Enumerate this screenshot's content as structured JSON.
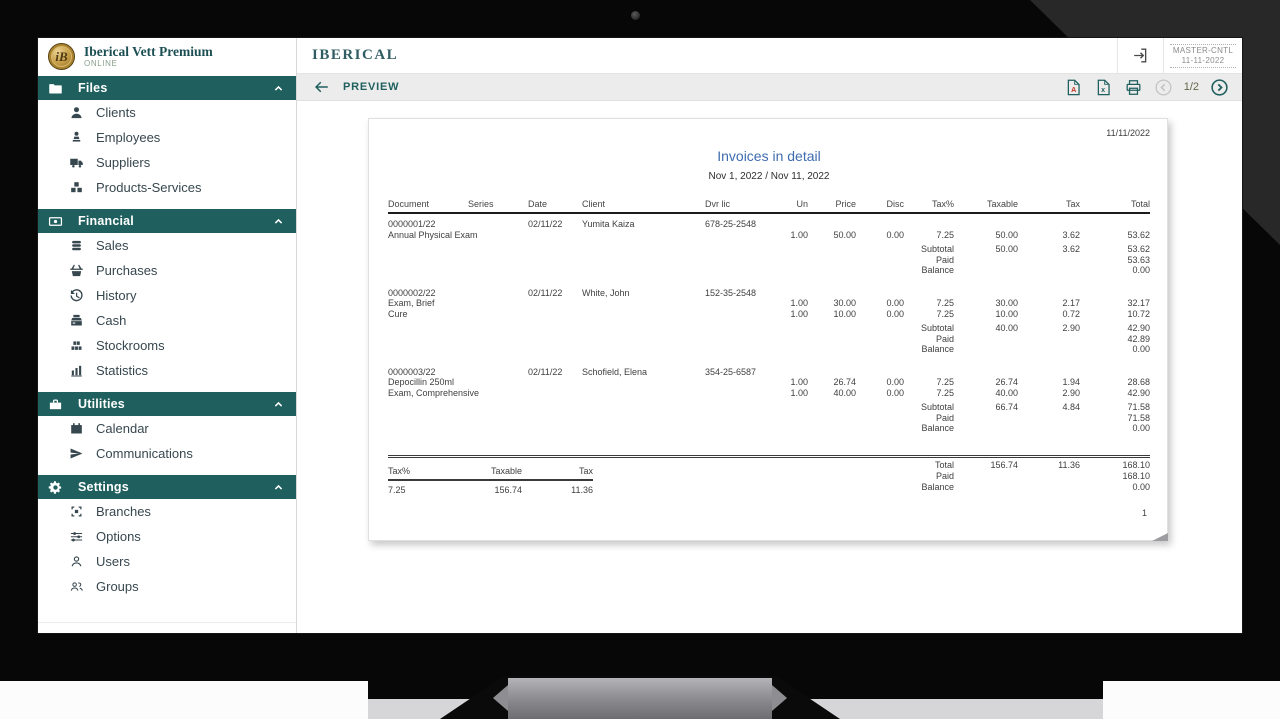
{
  "brand": {
    "title": "Iberical Vett Premium",
    "subtitle": "ONLINE",
    "monogram": "iB"
  },
  "header": {
    "app_title": "IBERICAL",
    "master_label": "MASTER-CNTL",
    "master_date": "11-11-2022"
  },
  "toolbar": {
    "preview_label": "PREVIEW",
    "page_indicator": "1/2"
  },
  "colors": {
    "accent": "#1f5f5e",
    "title_blue": "#3e6cb0",
    "coin_gold": "#c49b44"
  },
  "sidebar": {
    "sections": [
      {
        "label": "Files",
        "icon": "folder",
        "items": [
          {
            "label": "Clients",
            "icon": "person"
          },
          {
            "label": "Employees",
            "icon": "employee"
          },
          {
            "label": "Suppliers",
            "icon": "truck"
          },
          {
            "label": "Products-Services",
            "icon": "boxes"
          }
        ]
      },
      {
        "label": "Financial",
        "icon": "money",
        "items": [
          {
            "label": "Sales",
            "icon": "coins"
          },
          {
            "label": "Purchases",
            "icon": "basket"
          },
          {
            "label": "History",
            "icon": "history"
          },
          {
            "label": "Cash",
            "icon": "register"
          },
          {
            "label": "Stockrooms",
            "icon": "pallet"
          },
          {
            "label": "Statistics",
            "icon": "chart"
          }
        ]
      },
      {
        "label": "Utilities",
        "icon": "toolbox",
        "items": [
          {
            "label": "Calendar",
            "icon": "calendar"
          },
          {
            "label": "Communications",
            "icon": "send"
          }
        ]
      },
      {
        "label": "Settings",
        "icon": "gear",
        "items": [
          {
            "label": "Branches",
            "icon": "focus"
          },
          {
            "label": "Options",
            "icon": "sliders"
          },
          {
            "label": "Users",
            "icon": "user"
          },
          {
            "label": "Groups",
            "icon": "users"
          }
        ]
      }
    ]
  },
  "report": {
    "date": "11/11/2022",
    "title": "Invoices in detail",
    "subtitle": "Nov 1, 2022 / Nov 11, 2022",
    "columns": [
      "Document",
      "Series",
      "Date",
      "Client",
      "Dvr lic",
      "Un",
      "Price",
      "Disc",
      "Tax%",
      "Taxable",
      "Tax",
      "Total"
    ],
    "labels": {
      "subtotal": "Subtotal",
      "paid": "Paid",
      "balance": "Balance",
      "total": "Total"
    },
    "invoices": [
      {
        "document": "0000001/22",
        "series": "",
        "date": "02/11/22",
        "client": "Yumita Kaiza",
        "dvr_lic": "678-25-2548",
        "lines": [
          {
            "description": "Annual Physical Exam",
            "un": "1.00",
            "price": "50.00",
            "disc": "0.00",
            "tax_pct": "7.25",
            "taxable": "50.00",
            "tax": "3.62",
            "total": "53.62"
          }
        ],
        "subtotal": {
          "taxable": "50.00",
          "tax": "3.62",
          "total": "53.62"
        },
        "paid": "53.63",
        "balance": "0.00"
      },
      {
        "document": "0000002/22",
        "series": "",
        "date": "02/11/22",
        "client": "White, John",
        "dvr_lic": "152-35-2548",
        "lines": [
          {
            "description": "Exam, Brief",
            "un": "1.00",
            "price": "30.00",
            "disc": "0.00",
            "tax_pct": "7.25",
            "taxable": "30.00",
            "tax": "2.17",
            "total": "32.17"
          },
          {
            "description": "Cure",
            "un": "1.00",
            "price": "10.00",
            "disc": "0.00",
            "tax_pct": "7.25",
            "taxable": "10.00",
            "tax": "0.72",
            "total": "10.72"
          }
        ],
        "subtotal": {
          "taxable": "40.00",
          "tax": "2.90",
          "total": "42.90"
        },
        "paid": "42.89",
        "balance": "0.00"
      },
      {
        "document": "0000003/22",
        "series": "",
        "date": "02/11/22",
        "client": "Schofield, Elena",
        "dvr_lic": "354-25-6587",
        "lines": [
          {
            "description": "Depocillin 250ml",
            "un": "1.00",
            "price": "26.74",
            "disc": "0.00",
            "tax_pct": "7.25",
            "taxable": "26.74",
            "tax": "1.94",
            "total": "28.68"
          },
          {
            "description": "Exam, Comprehensive",
            "un": "1.00",
            "price": "40.00",
            "disc": "0.00",
            "tax_pct": "7.25",
            "taxable": "40.00",
            "tax": "2.90",
            "total": "42.90"
          }
        ],
        "subtotal": {
          "taxable": "66.74",
          "tax": "4.84",
          "total": "71.58"
        },
        "paid": "71.58",
        "balance": "0.00"
      }
    ],
    "tax_summary": {
      "headers": [
        "Tax%",
        "Taxable",
        "Tax"
      ],
      "values": [
        "7.25",
        "156.74",
        "11.36"
      ]
    },
    "totals": {
      "taxable": "156.74",
      "tax": "11.36",
      "total": "168.10",
      "paid": "168.10",
      "balance": "0.00"
    },
    "page_number": "1"
  }
}
